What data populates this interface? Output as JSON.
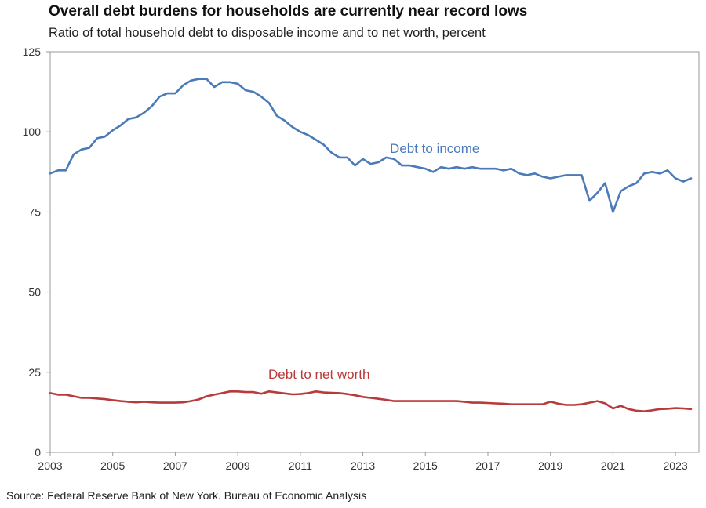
{
  "title": "Overall debt burdens for households are currently near record lows",
  "subtitle": "Ratio of total household debt to disposable income and to net worth, percent",
  "source": "Source: Federal Reserve Bank of New York. Bureau of Economic Analysis",
  "colors": {
    "debt_to_income": "#4a7ab8",
    "debt_to_net_worth": "#b83a3a",
    "axis": "#9a9a9a"
  },
  "chart_data": {
    "type": "line",
    "xlim": [
      2003,
      2023.75
    ],
    "ylim": [
      0,
      125
    ],
    "x_ticks": [
      "2003",
      "2005",
      "2007",
      "2009",
      "2011",
      "2013",
      "2015",
      "2017",
      "2019",
      "2021",
      "2023"
    ],
    "y_ticks": [
      "0",
      "25",
      "50",
      "75",
      "100",
      "125"
    ],
    "grid": false,
    "series": [
      {
        "name": "Debt to income",
        "x": [
          2003.0,
          2003.25,
          2003.5,
          2003.75,
          2004.0,
          2004.25,
          2004.5,
          2004.75,
          2005.0,
          2005.25,
          2005.5,
          2005.75,
          2006.0,
          2006.25,
          2006.5,
          2006.75,
          2007.0,
          2007.25,
          2007.5,
          2007.75,
          2008.0,
          2008.25,
          2008.5,
          2008.75,
          2009.0,
          2009.25,
          2009.5,
          2009.75,
          2010.0,
          2010.25,
          2010.5,
          2010.75,
          2011.0,
          2011.25,
          2011.5,
          2011.75,
          2012.0,
          2012.25,
          2012.5,
          2012.75,
          2013.0,
          2013.25,
          2013.5,
          2013.75,
          2014.0,
          2014.25,
          2014.5,
          2014.75,
          2015.0,
          2015.25,
          2015.5,
          2015.75,
          2016.0,
          2016.25,
          2016.5,
          2016.75,
          2017.0,
          2017.25,
          2017.5,
          2017.75,
          2018.0,
          2018.25,
          2018.5,
          2018.75,
          2019.0,
          2019.25,
          2019.5,
          2019.75,
          2020.0,
          2020.25,
          2020.5,
          2020.75,
          2021.0,
          2021.25,
          2021.5,
          2021.75,
          2022.0,
          2022.25,
          2022.5,
          2022.75,
          2023.0,
          2023.25,
          2023.5
        ],
        "values": [
          87,
          88,
          88,
          93,
          94.5,
          95,
          98,
          98.5,
          100.5,
          102,
          104,
          104.5,
          106,
          108,
          111,
          112,
          112,
          114.5,
          116,
          116.5,
          116.5,
          114,
          115.5,
          115.5,
          115,
          113,
          112.5,
          111,
          109,
          105,
          103.5,
          101.5,
          100,
          99,
          97.5,
          96,
          93.5,
          92,
          92,
          89.5,
          91.5,
          90,
          90.5,
          92,
          91.5,
          89.5,
          89.5,
          89,
          88.5,
          87.5,
          89,
          88.5,
          89,
          88.5,
          89,
          88.5,
          88.5,
          88.5,
          88,
          88.5,
          87,
          86.5,
          87,
          86,
          85.5,
          86,
          86.5,
          86.5,
          86.5,
          78.5,
          81,
          84,
          75,
          81.5,
          83,
          84,
          87,
          87.5,
          87,
          88,
          85.5,
          84.5,
          85.5
        ]
      },
      {
        "name": "Debt to net worth",
        "x": [
          2003.0,
          2003.25,
          2003.5,
          2003.75,
          2004.0,
          2004.25,
          2004.5,
          2004.75,
          2005.0,
          2005.25,
          2005.5,
          2005.75,
          2006.0,
          2006.25,
          2006.5,
          2006.75,
          2007.0,
          2007.25,
          2007.5,
          2007.75,
          2008.0,
          2008.25,
          2008.5,
          2008.75,
          2009.0,
          2009.25,
          2009.5,
          2009.75,
          2010.0,
          2010.25,
          2010.5,
          2010.75,
          2011.0,
          2011.25,
          2011.5,
          2011.75,
          2012.0,
          2012.25,
          2012.5,
          2012.75,
          2013.0,
          2013.25,
          2013.5,
          2013.75,
          2014.0,
          2014.25,
          2014.5,
          2014.75,
          2015.0,
          2015.25,
          2015.5,
          2015.75,
          2016.0,
          2016.25,
          2016.5,
          2016.75,
          2017.0,
          2017.25,
          2017.5,
          2017.75,
          2018.0,
          2018.25,
          2018.5,
          2018.75,
          2019.0,
          2019.25,
          2019.5,
          2019.75,
          2020.0,
          2020.25,
          2020.5,
          2020.75,
          2021.0,
          2021.25,
          2021.5,
          2021.75,
          2022.0,
          2022.25,
          2022.5,
          2022.75,
          2023.0,
          2023.25,
          2023.5
        ],
        "values": [
          18.5,
          18,
          18,
          17.5,
          17,
          17,
          16.8,
          16.6,
          16.3,
          16,
          15.8,
          15.6,
          15.8,
          15.6,
          15.5,
          15.5,
          15.5,
          15.6,
          16,
          16.5,
          17.5,
          18,
          18.5,
          19,
          19,
          18.8,
          18.8,
          18.3,
          19,
          18.7,
          18.4,
          18.1,
          18.2,
          18.5,
          19,
          18.7,
          18.6,
          18.5,
          18.2,
          17.8,
          17.3,
          17,
          16.7,
          16.4,
          16,
          16,
          16,
          16,
          16,
          16,
          16,
          16,
          16,
          15.8,
          15.5,
          15.5,
          15.4,
          15.3,
          15.2,
          15,
          15,
          15,
          15,
          15,
          15.8,
          15.2,
          14.8,
          14.8,
          15,
          15.5,
          16,
          15.3,
          13.7,
          14.5,
          13.5,
          13,
          12.8,
          13.1,
          13.5,
          13.6,
          13.8,
          13.7,
          13.5
        ]
      }
    ],
    "annotations": [
      {
        "series": "Debt to income",
        "text": "Debt to income",
        "x": 2015.3,
        "y": 93.5
      },
      {
        "series": "Debt to net worth",
        "text": "Debt to net worth",
        "x": 2011.6,
        "y": 23
      }
    ]
  }
}
